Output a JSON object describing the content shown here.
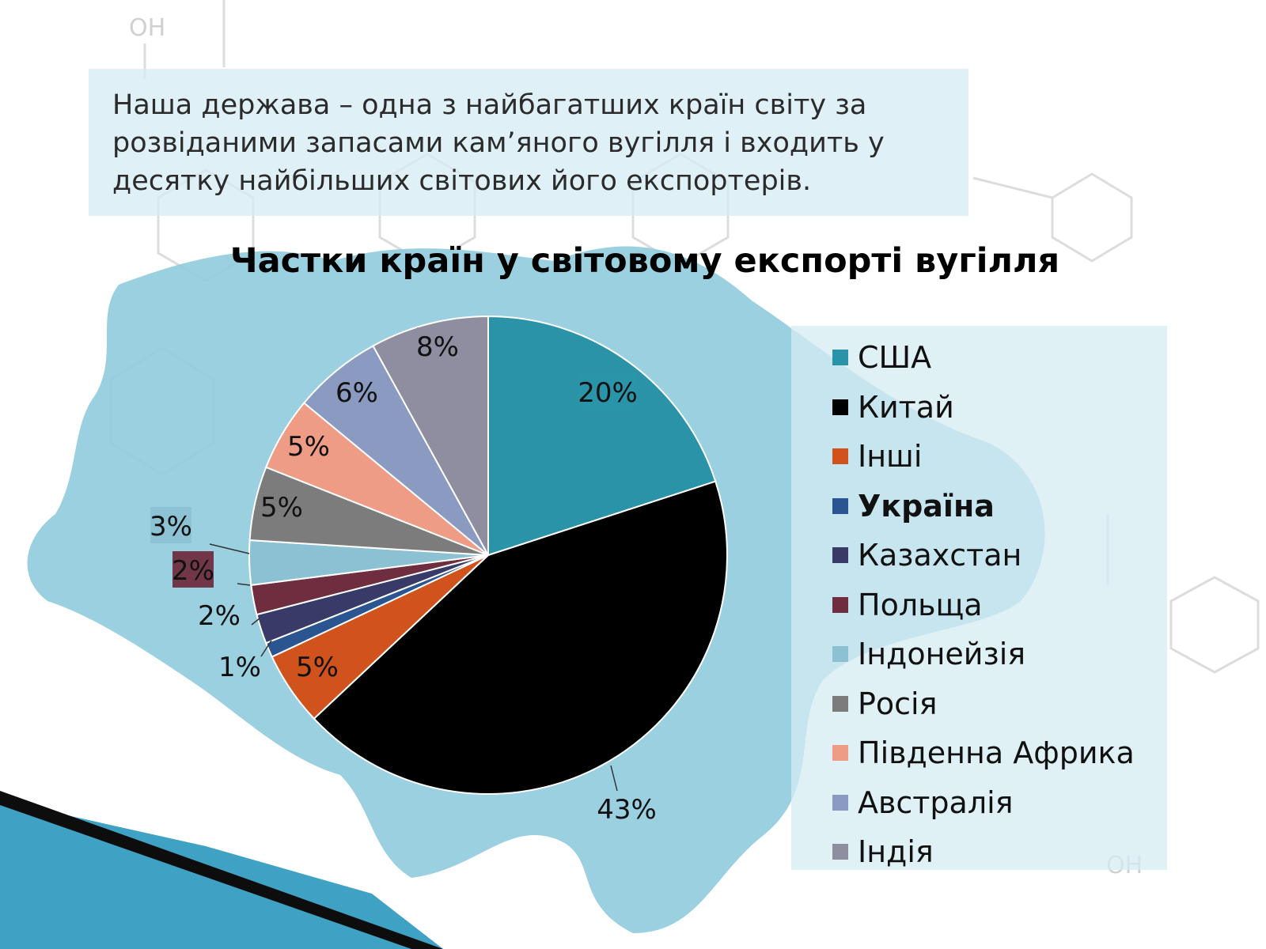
{
  "slide": {
    "intro_text": "Наша держава – одна з найбагатших країн світу за розвіданими запасами кам’яного вугілля і входить у десятку найбільших світових його експортерів."
  },
  "colors": {
    "accent": "#2a93a8",
    "map": "#8fcbdc",
    "panel": "#d6ecf3"
  },
  "chart_data": {
    "type": "pie",
    "title": "Частки країн у світовому експорті вугілля",
    "legend_position": "right",
    "slices": [
      {
        "name": "США",
        "value": 20,
        "label": "20%",
        "color": "#2a93a8"
      },
      {
        "name": "Китай",
        "value": 43,
        "label": "43%",
        "color": "#000000"
      },
      {
        "name": "Інші",
        "value": 5,
        "label": "5%",
        "color": "#d0531d"
      },
      {
        "name": "Україна",
        "value": 1,
        "label": "1%",
        "color": "#2b5591",
        "highlight": true
      },
      {
        "name": "Казахстан",
        "value": 2,
        "label": "2%",
        "color": "#383b67"
      },
      {
        "name": "Польща",
        "value": 2,
        "label": "2%",
        "color": "#6f2e3f"
      },
      {
        "name": "Індонейзія",
        "value": 3,
        "label": "3%",
        "color": "#8cc0d3"
      },
      {
        "name": "Росія",
        "value": 5,
        "label": "5%",
        "color": "#7c7c7c"
      },
      {
        "name": "Південна Африка",
        "value": 5,
        "label": "5%",
        "color": "#ee9c86"
      },
      {
        "name": "Австралія",
        "value": 6,
        "label": "6%",
        "color": "#8a9ac0"
      },
      {
        "name": "Індія",
        "value": 8,
        "label": "8%",
        "color": "#8f8ea1"
      }
    ]
  }
}
